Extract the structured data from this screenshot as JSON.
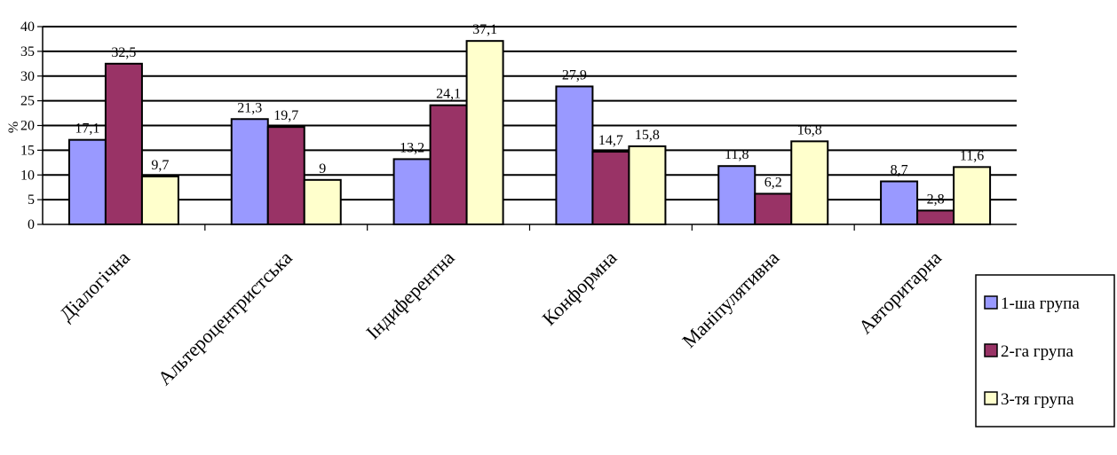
{
  "chart_data": {
    "type": "bar",
    "ylabel": "%",
    "xlabel": "",
    "ylim": [
      0,
      40
    ],
    "ytick_step": 5,
    "grid": true,
    "legend_position": "right",
    "categories": [
      "Діалогічна",
      "Альтероцентристська",
      "Індиферентна",
      "Конформна",
      "Маніпулятивна",
      "Авторитарна"
    ],
    "series": [
      {
        "name": "1-ша група",
        "color": "#9999ff",
        "values": [
          17.1,
          21.3,
          13.2,
          27.9,
          11.8,
          8.7
        ],
        "labels": [
          "17,1",
          "21,3",
          "13,2",
          "27,9",
          "11,8",
          "8,7"
        ]
      },
      {
        "name": "2-га група",
        "color": "#993366",
        "values": [
          32.5,
          19.7,
          24.1,
          14.7,
          6.2,
          2.8
        ],
        "labels": [
          "32,5",
          "19,7",
          "24,1",
          "14,7",
          "6,2",
          "2,8"
        ]
      },
      {
        "name": "3-тя група",
        "color": "#ffffcc",
        "values": [
          9.7,
          9,
          37.1,
          15.8,
          16.8,
          11.6
        ],
        "labels": [
          "9,7",
          "9",
          "37,1",
          "15,8",
          "16,8",
          "11,6"
        ]
      }
    ]
  }
}
